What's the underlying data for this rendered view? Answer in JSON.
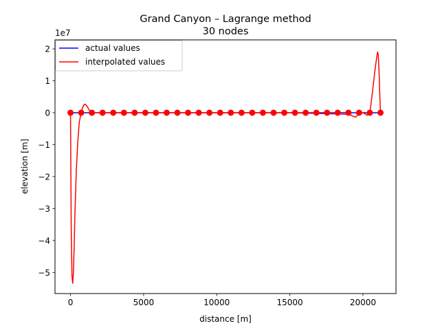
{
  "chart_data": {
    "type": "line",
    "title": "Grand Canyon – Lagrange method",
    "subtitle": "30 nodes",
    "xlabel": "distance [m]",
    "ylabel": "elevation [m]",
    "y_scale_label": "1e7",
    "xlim": [
      -1060,
      22260
    ],
    "ylim": [
      -5.66,
      2.28
    ],
    "y_unit_multiplier": 10000000,
    "x_ticks": [
      0,
      5000,
      10000,
      15000,
      20000
    ],
    "x_tick_labels": [
      "0",
      "5000",
      "10000",
      "15000",
      "20000"
    ],
    "y_ticks": [
      2,
      1,
      0,
      -1,
      -2,
      -3,
      -4,
      -5
    ],
    "y_tick_labels": [
      "2",
      "1",
      "0",
      "−1",
      "−2",
      "−3",
      "−4",
      "−5"
    ],
    "grid": false,
    "legend_position": "top-left",
    "colors": {
      "actual": "#0000ff",
      "interpolated": "#ff0000",
      "nodes": "#ff0000"
    },
    "series": [
      {
        "name": "actual values",
        "color": "#0000ff",
        "x": [
          0,
          21200
        ],
        "y": [
          0,
          0
        ]
      },
      {
        "name": "interpolated values",
        "color": "#ff0000",
        "x": [
          0,
          50,
          100,
          150,
          200,
          250,
          300,
          400,
          500,
          600,
          731,
          800,
          900,
          1000,
          1100,
          1200,
          1300,
          1462,
          1600,
          2000,
          3000,
          5000,
          10000,
          15000,
          19000,
          19500,
          19738,
          20000,
          20300,
          20469,
          20600,
          20800,
          20900,
          21000,
          21050,
          21100,
          21150,
          21200
        ],
        "y": [
          0,
          -3.6,
          -5.1,
          -5.34,
          -5.0,
          -4.2,
          -3.2,
          -1.8,
          -0.9,
          -0.3,
          0,
          0.12,
          0.24,
          0.27,
          0.22,
          0.15,
          0.07,
          0,
          0,
          0,
          0,
          0,
          0,
          0,
          -0.05,
          -0.14,
          -0.02,
          0,
          -0.08,
          0,
          0.45,
          1.25,
          1.6,
          1.9,
          1.8,
          1.3,
          0.6,
          0
        ]
      }
    ],
    "nodes": {
      "name": "nodes",
      "x": [
        0,
        731,
        1462,
        2193,
        2924,
        3655,
        4386,
        5117,
        5848,
        6579,
        7310,
        8041,
        8772,
        9503,
        10234,
        10966,
        11697,
        12428,
        13159,
        13890,
        14621,
        15352,
        16083,
        16814,
        17545,
        18276,
        19007,
        19738,
        20469,
        21200
      ],
      "y": [
        0,
        0,
        0,
        0,
        0,
        0,
        0,
        0,
        0,
        0,
        0,
        0,
        0,
        0,
        0,
        0,
        0,
        0,
        0,
        0,
        0,
        0,
        0,
        0,
        0,
        0,
        0,
        0,
        0,
        0
      ]
    }
  }
}
